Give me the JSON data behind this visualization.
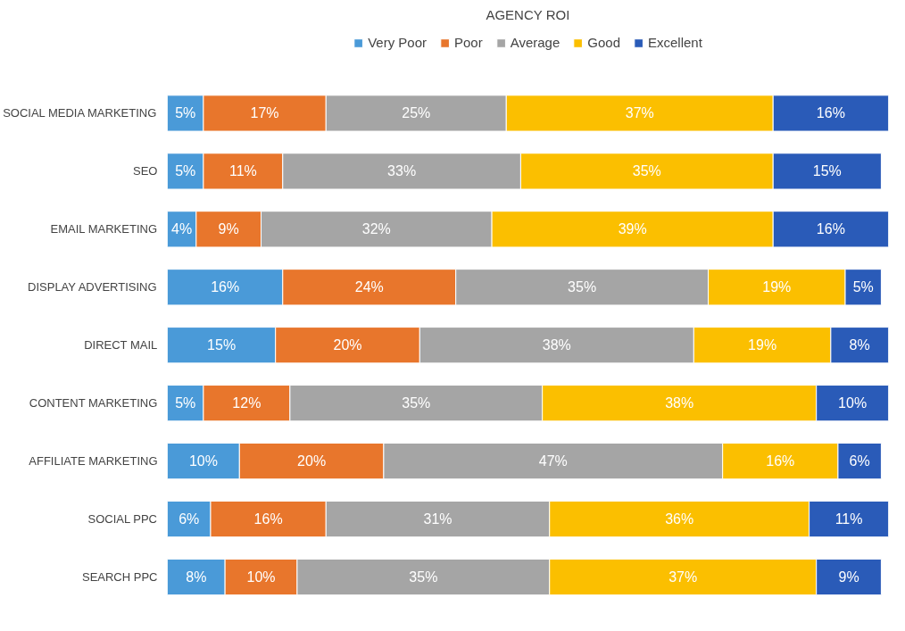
{
  "chart_data": {
    "type": "bar",
    "orientation": "horizontal",
    "stacked": true,
    "title": "AGENCY ROI",
    "categories": [
      "SOCIAL MEDIA MARKETING",
      "SEO",
      "EMAIL MARKETING",
      "DISPLAY ADVERTISING",
      "DIRECT MAIL",
      "CONTENT MARKETING",
      "AFFILIATE MARKETING",
      "SOCIAL PPC",
      "SEARCH PPC"
    ],
    "series": [
      {
        "name": "Very Poor",
        "color": "#4a9ad8",
        "values": [
          5,
          5,
          4,
          16,
          15,
          5,
          10,
          6,
          8
        ],
        "value_labels": [
          "5%",
          "5%",
          "4%",
          "16%",
          "15%",
          "5%",
          "10%",
          "6%",
          "8%"
        ]
      },
      {
        "name": "Poor",
        "color": "#e8762c",
        "values": [
          17,
          11,
          9,
          24,
          20,
          12,
          20,
          16,
          10
        ],
        "value_labels": [
          "17%",
          "11%",
          "9%",
          "24%",
          "20%",
          "12%",
          "20%",
          "16%",
          "10%"
        ]
      },
      {
        "name": "Average",
        "color": "#a5a5a5",
        "values": [
          25,
          33,
          32,
          35,
          38,
          35,
          47,
          31,
          35
        ],
        "value_labels": [
          "25%",
          "33%",
          "32%",
          "35%",
          "38%",
          "35%",
          "47%",
          "31%",
          "35%"
        ]
      },
      {
        "name": "Good",
        "color": "#fbbf00",
        "values": [
          37,
          35,
          39,
          19,
          19,
          38,
          16,
          36,
          37
        ],
        "value_labels": [
          "37%",
          "35%",
          "39%",
          "19%",
          "19%",
          "38%",
          "16%",
          "36%",
          "37%"
        ]
      },
      {
        "name": "Excellent",
        "color": "#2a5bb8",
        "values": [
          16,
          15,
          16,
          5,
          8,
          10,
          6,
          11,
          9
        ],
        "value_labels": [
          "16%",
          "15%",
          "16%",
          "5%",
          "8%",
          "10%",
          "6%",
          "11%",
          "9%"
        ]
      }
    ],
    "xlim": [
      0,
      100
    ],
    "tick_labels": "y",
    "legend": "top",
    "grid": false
  }
}
